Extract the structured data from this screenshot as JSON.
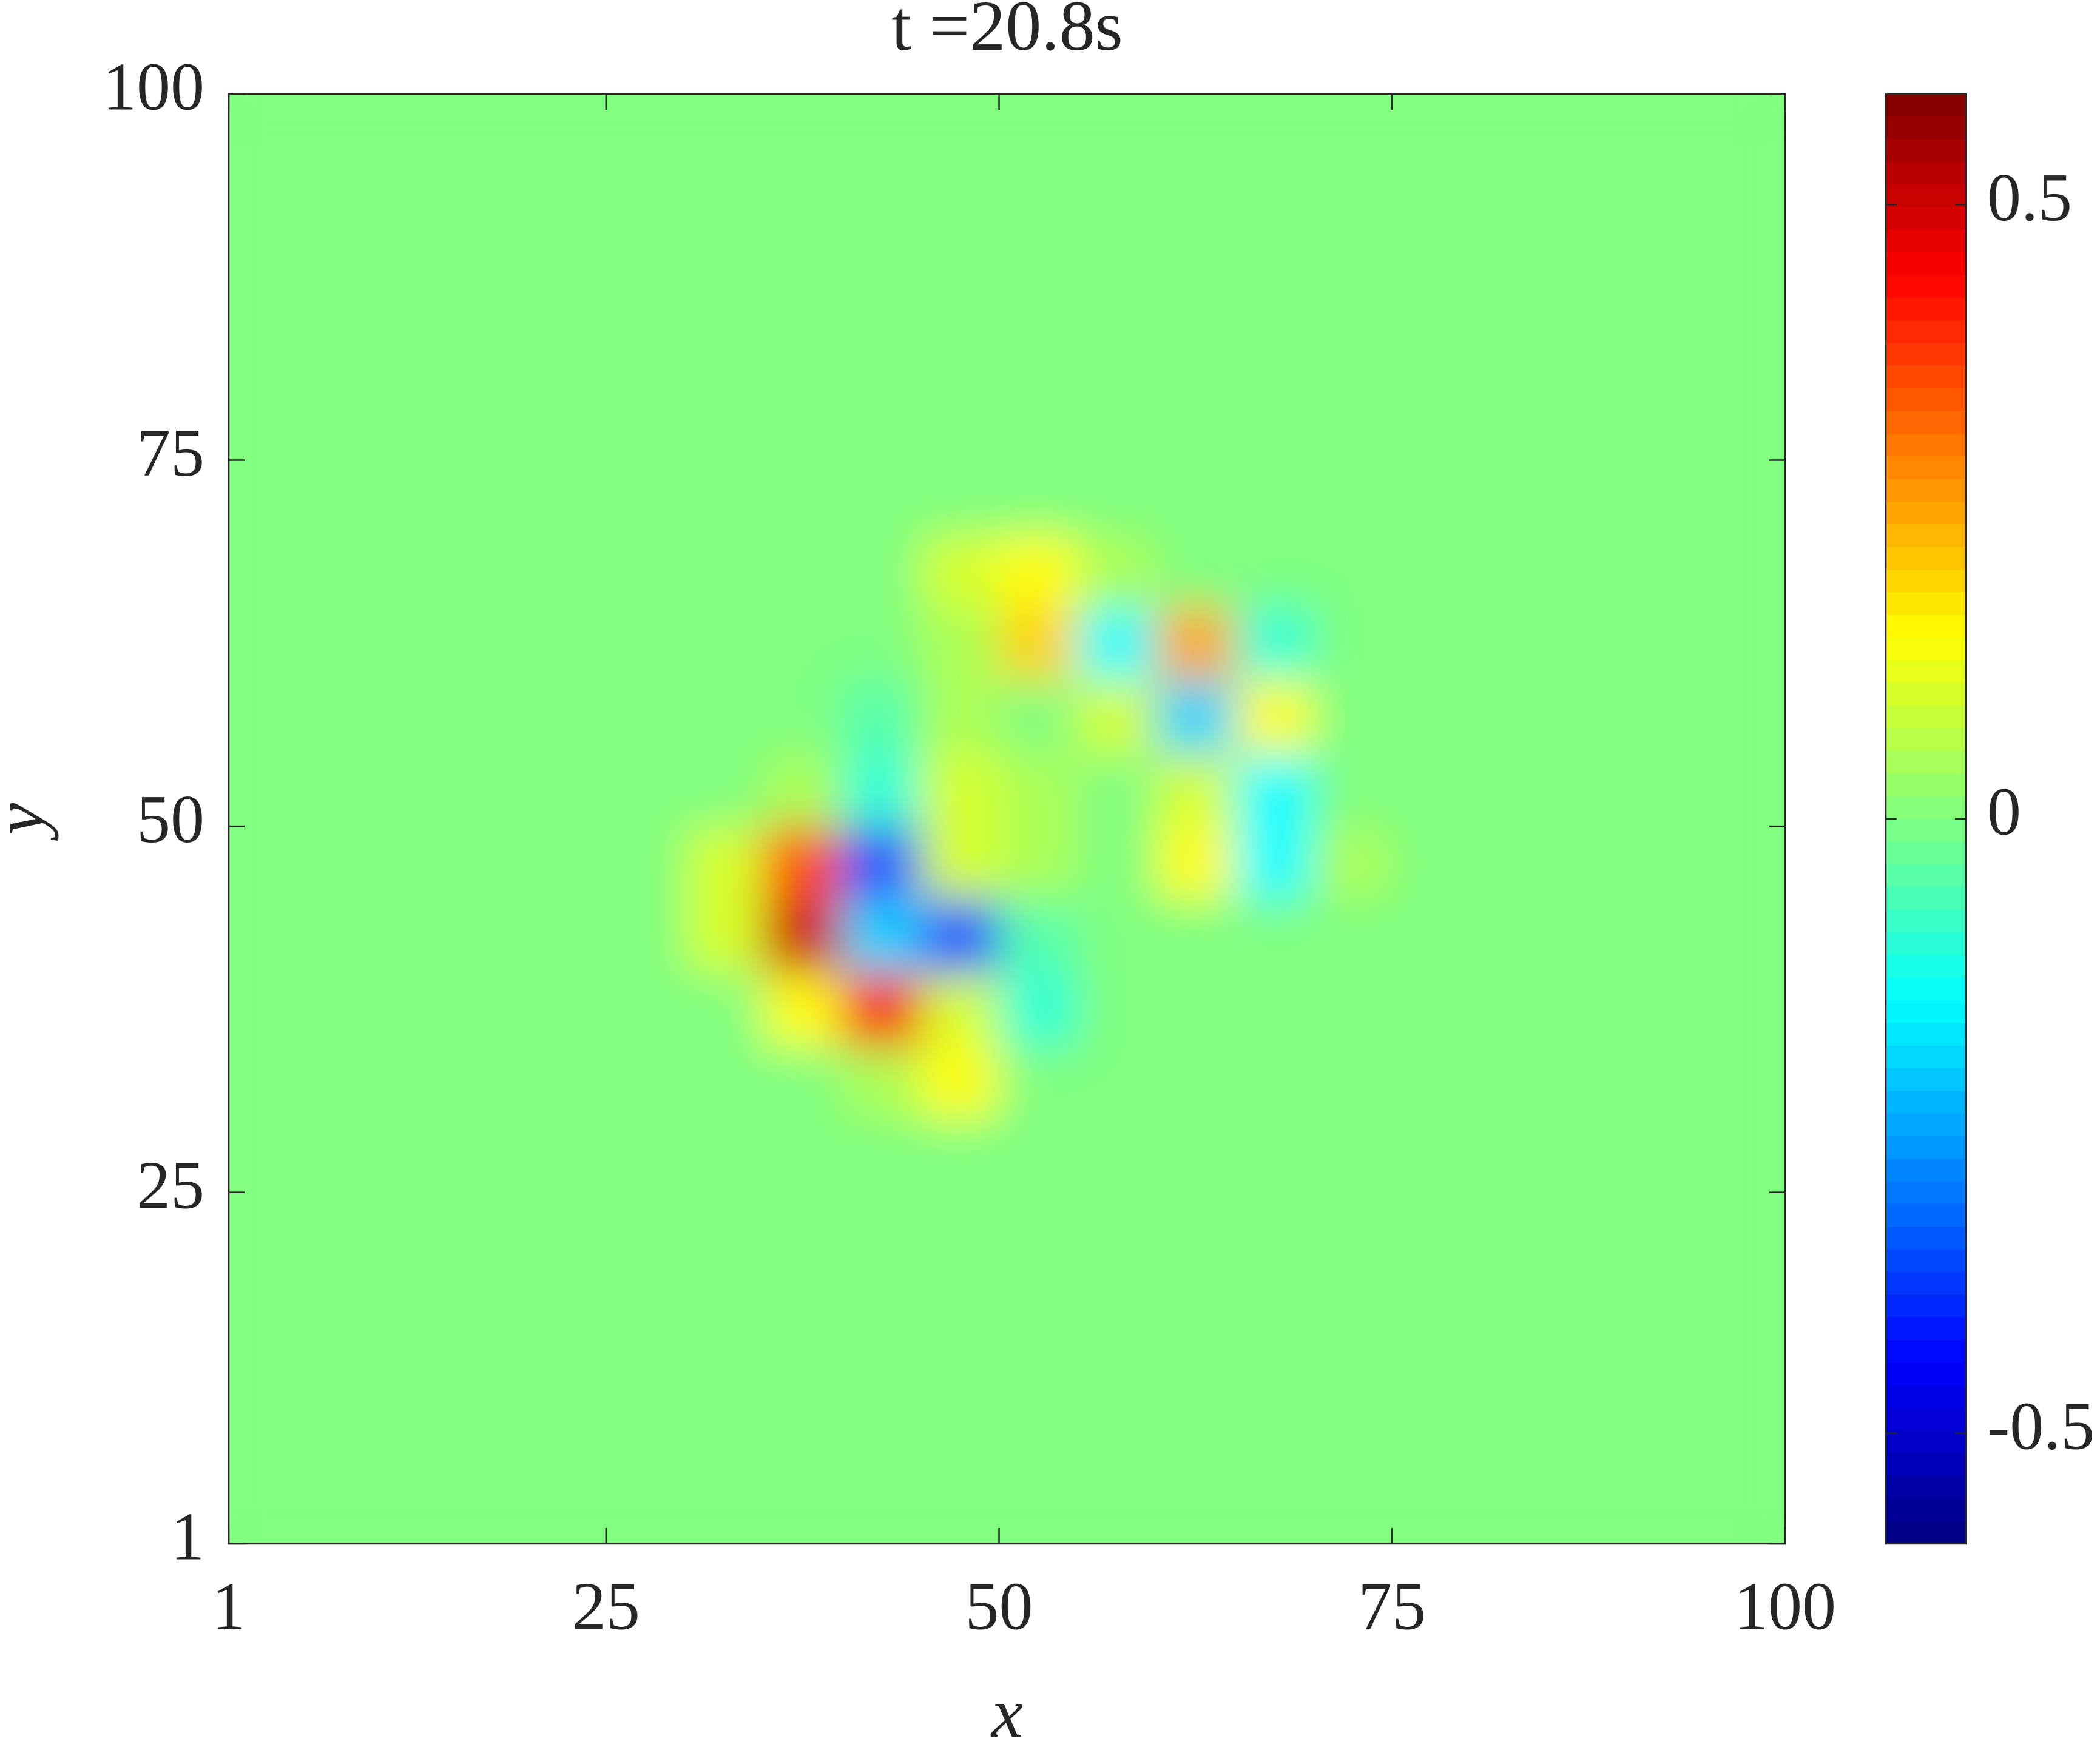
{
  "chart_data": {
    "type": "heatmap",
    "title": "t =20.8s",
    "x_label": "x",
    "y_label": "y",
    "xlim": [
      1,
      100
    ],
    "ylim": [
      1,
      100
    ],
    "xticks": [
      1,
      25,
      50,
      75,
      100
    ],
    "yticks": [
      1,
      25,
      50,
      75,
      100
    ],
    "colormap": "jet",
    "clim": [
      -0.59,
      0.59
    ],
    "cticks": [
      -0.5,
      0,
      0.5
    ],
    "x": [
      2.5,
      7.5,
      12.5,
      17.5,
      22.5,
      27.5,
      32.5,
      37.5,
      42.5,
      47.5,
      52.5,
      57.5,
      62.5,
      67.5,
      72.5,
      77.5,
      82.5,
      87.5,
      92.5,
      97.5
    ],
    "y": [
      2.5,
      7.5,
      12.5,
      17.5,
      22.5,
      27.5,
      32.5,
      37.5,
      42.5,
      47.5,
      52.5,
      57.5,
      62.5,
      67.5,
      72.5,
      77.5,
      82.5,
      87.5,
      92.5,
      97.5
    ],
    "z": [
      [
        0,
        0,
        0,
        0,
        0,
        0,
        0,
        0,
        0,
        0,
        0,
        0,
        0,
        0,
        0,
        0,
        0,
        0,
        0,
        0
      ],
      [
        0,
        0,
        0,
        0,
        0,
        0,
        0,
        0,
        0,
        0,
        0,
        0,
        0,
        0,
        0,
        0,
        0,
        0,
        0,
        0
      ],
      [
        0,
        0,
        0,
        0,
        0,
        0,
        0,
        0,
        0,
        0,
        0,
        0,
        0,
        0,
        0,
        0,
        0,
        0,
        0,
        0
      ],
      [
        0,
        0,
        0,
        0,
        0,
        0,
        0,
        0,
        0,
        0,
        0,
        0,
        0,
        0,
        0,
        0,
        0,
        0,
        0,
        0
      ],
      [
        0,
        0,
        0,
        0,
        0,
        0,
        0,
        0,
        0,
        0,
        0,
        0,
        0,
        0,
        0,
        0,
        0,
        0,
        0,
        0
      ],
      [
        0,
        0,
        0,
        0,
        0,
        0,
        0,
        0,
        0,
        0,
        0,
        0,
        0,
        0,
        0,
        0,
        0,
        0,
        0,
        0
      ],
      [
        0,
        0,
        0,
        0,
        0,
        0,
        0,
        0,
        0.05,
        0.15,
        0,
        0,
        0,
        0,
        0,
        0,
        0,
        0,
        0,
        0
      ],
      [
        0,
        0,
        0,
        0,
        0,
        0,
        0,
        0.15,
        0.45,
        0.1,
        -0.1,
        0,
        0,
        0,
        0,
        0,
        0,
        0,
        0,
        0
      ],
      [
        0,
        0,
        0,
        0,
        0,
        0,
        0.1,
        0.5,
        -0.2,
        -0.35,
        -0.05,
        0,
        0,
        0,
        0,
        0,
        0,
        0,
        0,
        0
      ],
      [
        0,
        0,
        0,
        0,
        0,
        0,
        0.1,
        0.35,
        -0.35,
        0.1,
        0.05,
        0,
        0.15,
        -0.15,
        0.05,
        0,
        0,
        0,
        0,
        0
      ],
      [
        0,
        0,
        0,
        0,
        0,
        0,
        0,
        0.05,
        -0.1,
        0.1,
        0.05,
        0,
        0.1,
        -0.15,
        0,
        0,
        0,
        0,
        0,
        0
      ],
      [
        0,
        0,
        0,
        0,
        0,
        0,
        0,
        0,
        -0.05,
        0.05,
        0,
        0.1,
        -0.2,
        0.15,
        0,
        0,
        0,
        0,
        0,
        0
      ],
      [
        0,
        0,
        0,
        0,
        0,
        0,
        0,
        0,
        0,
        0.05,
        0.2,
        -0.15,
        0.25,
        -0.1,
        0,
        0,
        0,
        0,
        0,
        0
      ],
      [
        0,
        0,
        0,
        0,
        0,
        0,
        0,
        0,
        0,
        0.1,
        0.15,
        0.05,
        0,
        0,
        0,
        0,
        0,
        0,
        0,
        0
      ],
      [
        0,
        0,
        0,
        0,
        0,
        0,
        0,
        0,
        0,
        0,
        0,
        0,
        0,
        0,
        0,
        0,
        0,
        0,
        0,
        0
      ],
      [
        0,
        0,
        0,
        0,
        0,
        0,
        0,
        0,
        0,
        0,
        0,
        0,
        0,
        0,
        0,
        0,
        0,
        0,
        0,
        0
      ],
      [
        0,
        0,
        0,
        0,
        0,
        0,
        0,
        0,
        0,
        0,
        0,
        0,
        0,
        0,
        0,
        0,
        0,
        0,
        0,
        0
      ],
      [
        0,
        0,
        0,
        0,
        0,
        0,
        0,
        0,
        0,
        0,
        0,
        0,
        0,
        0,
        0,
        0,
        0,
        0,
        0,
        0
      ],
      [
        0,
        0,
        0,
        0,
        0,
        0,
        0,
        0,
        0,
        0,
        0,
        0,
        0,
        0,
        0,
        0,
        0,
        0,
        0,
        0
      ],
      [
        0,
        0,
        0,
        0,
        0,
        0,
        0,
        0,
        0,
        0,
        0,
        0,
        0,
        0,
        0,
        0,
        0,
        0,
        0,
        0
      ]
    ]
  }
}
